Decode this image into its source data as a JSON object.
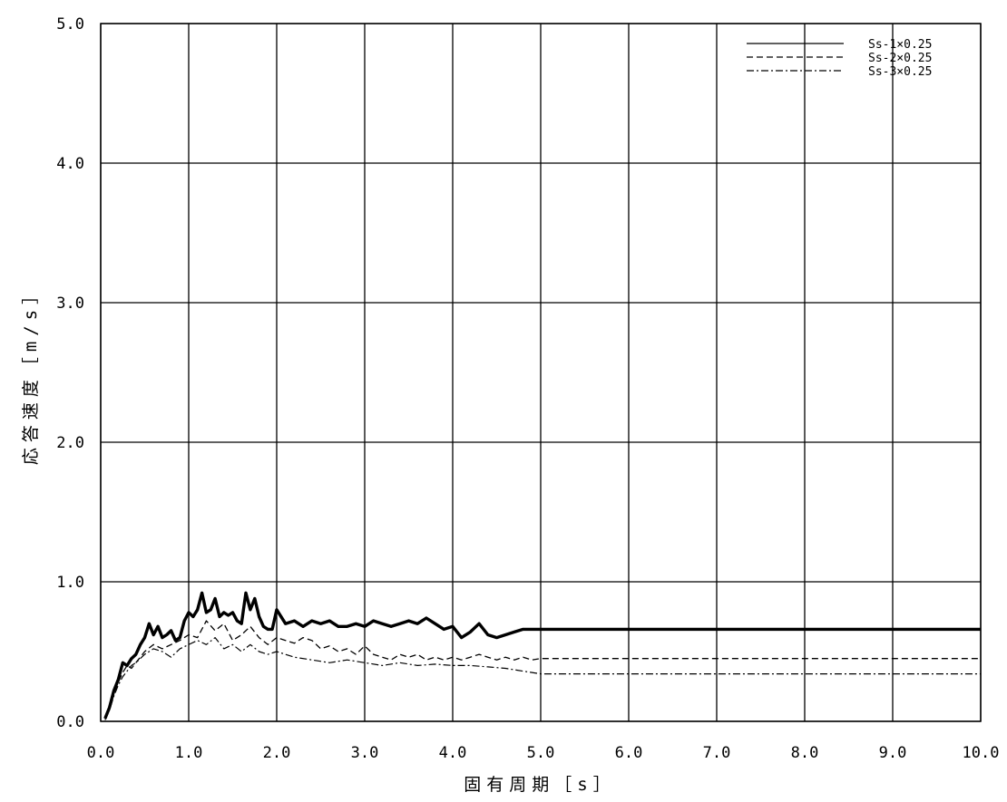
{
  "chart_data": {
    "type": "line",
    "title": "",
    "xlabel": "固有周期［s］",
    "ylabel": "応答速度［m/s］",
    "xlim": [
      0,
      10
    ],
    "ylim": [
      0,
      5
    ],
    "x_ticks": [
      "0.0",
      "1.0",
      "2.0",
      "3.0",
      "4.0",
      "5.0",
      "6.0",
      "7.0",
      "8.0",
      "9.0",
      "10.0"
    ],
    "y_ticks": [
      "0.0",
      "1.0",
      "2.0",
      "3.0",
      "4.0",
      "5.0"
    ],
    "grid": true,
    "legend_position": "top-right",
    "series": [
      {
        "name": "Ss-1×0.25",
        "style": "solid",
        "color": "#000000",
        "x": [
          0.05,
          0.1,
          0.15,
          0.2,
          0.25,
          0.3,
          0.35,
          0.4,
          0.45,
          0.5,
          0.55,
          0.6,
          0.65,
          0.7,
          0.75,
          0.8,
          0.85,
          0.9,
          0.95,
          1.0,
          1.05,
          1.1,
          1.15,
          1.2,
          1.25,
          1.3,
          1.35,
          1.4,
          1.45,
          1.5,
          1.55,
          1.6,
          1.65,
          1.7,
          1.75,
          1.8,
          1.85,
          1.9,
          1.95,
          2.0,
          2.1,
          2.2,
          2.3,
          2.4,
          2.5,
          2.6,
          2.7,
          2.8,
          2.9,
          3.0,
          3.1,
          3.2,
          3.3,
          3.4,
          3.5,
          3.6,
          3.7,
          3.8,
          3.9,
          4.0,
          4.1,
          4.2,
          4.3,
          4.4,
          4.5,
          4.6,
          4.7,
          4.8,
          4.9,
          5.0,
          10.0
        ],
        "y": [
          0.02,
          0.1,
          0.22,
          0.3,
          0.42,
          0.4,
          0.45,
          0.48,
          0.55,
          0.6,
          0.7,
          0.62,
          0.68,
          0.6,
          0.62,
          0.65,
          0.58,
          0.6,
          0.72,
          0.78,
          0.75,
          0.8,
          0.92,
          0.78,
          0.8,
          0.88,
          0.75,
          0.78,
          0.76,
          0.78,
          0.72,
          0.7,
          0.92,
          0.8,
          0.88,
          0.75,
          0.68,
          0.66,
          0.66,
          0.8,
          0.7,
          0.72,
          0.68,
          0.72,
          0.7,
          0.72,
          0.68,
          0.68,
          0.7,
          0.68,
          0.72,
          0.7,
          0.68,
          0.7,
          0.72,
          0.7,
          0.74,
          0.7,
          0.66,
          0.68,
          0.6,
          0.64,
          0.7,
          0.62,
          0.6,
          0.62,
          0.64,
          0.66,
          0.66,
          0.66,
          0.66
        ]
      },
      {
        "name": "Ss-2×0.25",
        "style": "dashed",
        "color": "#000000",
        "x": [
          0.05,
          0.1,
          0.15,
          0.2,
          0.25,
          0.3,
          0.35,
          0.4,
          0.5,
          0.6,
          0.7,
          0.8,
          0.9,
          1.0,
          1.1,
          1.2,
          1.3,
          1.4,
          1.5,
          1.6,
          1.7,
          1.8,
          1.9,
          2.0,
          2.1,
          2.2,
          2.3,
          2.4,
          2.5,
          2.6,
          2.7,
          2.8,
          2.9,
          3.0,
          3.1,
          3.2,
          3.3,
          3.4,
          3.5,
          3.6,
          3.7,
          3.8,
          3.9,
          4.0,
          4.1,
          4.2,
          4.3,
          4.4,
          4.5,
          4.6,
          4.7,
          4.8,
          4.9,
          5.0,
          10.0
        ],
        "y": [
          0.02,
          0.1,
          0.2,
          0.28,
          0.35,
          0.4,
          0.38,
          0.42,
          0.5,
          0.55,
          0.52,
          0.55,
          0.58,
          0.62,
          0.6,
          0.72,
          0.65,
          0.7,
          0.58,
          0.62,
          0.68,
          0.6,
          0.55,
          0.6,
          0.58,
          0.56,
          0.6,
          0.58,
          0.52,
          0.54,
          0.5,
          0.52,
          0.48,
          0.54,
          0.48,
          0.46,
          0.44,
          0.48,
          0.46,
          0.48,
          0.44,
          0.46,
          0.44,
          0.46,
          0.44,
          0.46,
          0.48,
          0.46,
          0.44,
          0.46,
          0.44,
          0.46,
          0.44,
          0.45,
          0.45
        ]
      },
      {
        "name": "Ss-3×0.25",
        "style": "dashdot",
        "color": "#000000",
        "x": [
          0.05,
          0.1,
          0.15,
          0.2,
          0.25,
          0.3,
          0.35,
          0.4,
          0.5,
          0.6,
          0.7,
          0.8,
          0.9,
          1.0,
          1.1,
          1.2,
          1.3,
          1.4,
          1.5,
          1.6,
          1.7,
          1.8,
          1.9,
          2.0,
          2.2,
          2.4,
          2.6,
          2.8,
          3.0,
          3.2,
          3.4,
          3.6,
          3.8,
          4.0,
          4.2,
          4.4,
          4.6,
          4.8,
          5.0,
          10.0
        ],
        "y": [
          0.01,
          0.08,
          0.18,
          0.26,
          0.32,
          0.36,
          0.4,
          0.42,
          0.48,
          0.52,
          0.5,
          0.46,
          0.52,
          0.55,
          0.58,
          0.55,
          0.6,
          0.52,
          0.55,
          0.5,
          0.55,
          0.5,
          0.48,
          0.5,
          0.46,
          0.44,
          0.42,
          0.44,
          0.42,
          0.4,
          0.42,
          0.4,
          0.41,
          0.4,
          0.4,
          0.39,
          0.38,
          0.36,
          0.34,
          0.34
        ]
      }
    ]
  }
}
